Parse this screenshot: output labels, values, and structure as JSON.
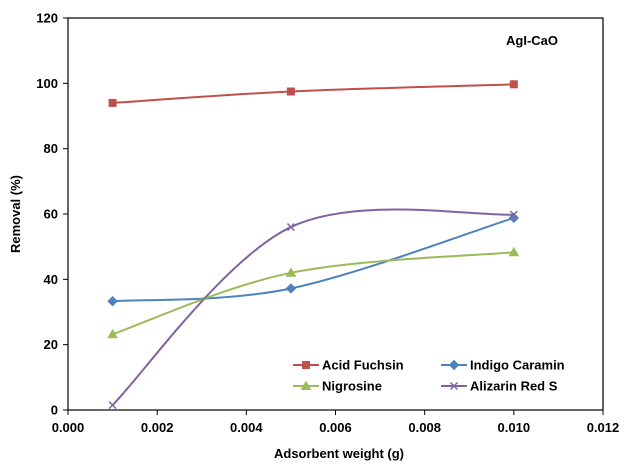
{
  "chart_data": {
    "type": "line",
    "inset_label": "AgI-CaO",
    "xlabel": "Adsorbent weight (g)",
    "ylabel": "Removal (%)",
    "xlim": [
      0,
      0.012
    ],
    "ylim": [
      0,
      120
    ],
    "x_ticks": [
      "0.000",
      "0.002",
      "0.004",
      "0.006",
      "0.008",
      "0.010",
      "0.012"
    ],
    "y_ticks": [
      "0",
      "20",
      "40",
      "60",
      "80",
      "100",
      "120"
    ],
    "grid": false,
    "legend_placement": "bottom-right",
    "x": [
      0.001,
      0.005,
      0.01
    ],
    "series": [
      {
        "name": "Acid Fuchsin",
        "values": [
          94.0,
          97.5,
          99.7
        ],
        "color": "#c0504d",
        "marker": "square"
      },
      {
        "name": "Indigo Caramin",
        "values": [
          33.3,
          37.2,
          58.8
        ],
        "color": "#4f81bd",
        "marker": "diamond"
      },
      {
        "name": "Nigrosine",
        "values": [
          23.2,
          42.0,
          48.3
        ],
        "color": "#9bbb59",
        "marker": "triangle"
      },
      {
        "name": "Alizarin Red S",
        "values": [
          1.5,
          56.0,
          59.8
        ],
        "color": "#8064a2",
        "marker": "x"
      }
    ]
  }
}
